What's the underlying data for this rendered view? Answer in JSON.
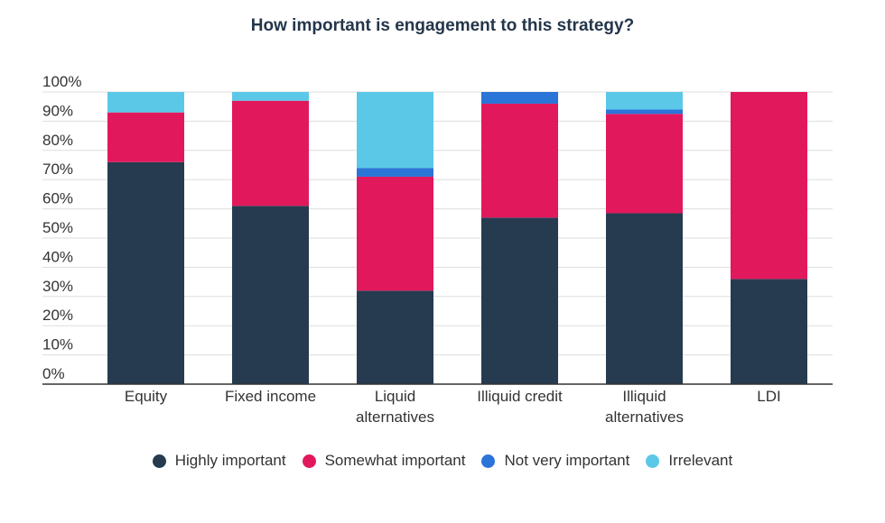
{
  "chart_data": {
    "type": "bar",
    "stacked": true,
    "title": "How important is engagement to this strategy?",
    "xlabel": "",
    "ylabel": "",
    "ylim": [
      0,
      100
    ],
    "yticks": [
      "0%",
      "10%",
      "20%",
      "30%",
      "40%",
      "50%",
      "60%",
      "70%",
      "80%",
      "90%",
      "100%"
    ],
    "categories": [
      "Equity",
      "Fixed income",
      "Liquid alternatives",
      "Illiquid credit",
      "Illiquid alternatives",
      "LDI"
    ],
    "category_lines": [
      [
        "Equity"
      ],
      [
        "Fixed income"
      ],
      [
        "Liquid",
        "alternatives"
      ],
      [
        "Illiquid credit"
      ],
      [
        "Illiquid",
        "alternatives"
      ],
      [
        "LDI"
      ]
    ],
    "series": [
      {
        "name": "Highly important",
        "color": "#263b50",
        "values": [
          76,
          61,
          32,
          57,
          58.5,
          36
        ]
      },
      {
        "name": "Somewhat important",
        "color": "#e2185c",
        "values": [
          17,
          36,
          39,
          39,
          34,
          64
        ]
      },
      {
        "name": "Not very important",
        "color": "#2b74d8",
        "values": [
          0,
          0,
          3,
          4,
          1.5,
          0
        ]
      },
      {
        "name": "Irrelevant",
        "color": "#5bc8e8",
        "values": [
          7,
          3,
          26,
          0,
          6,
          0
        ]
      }
    ],
    "grid": true,
    "legend_position": "bottom"
  }
}
